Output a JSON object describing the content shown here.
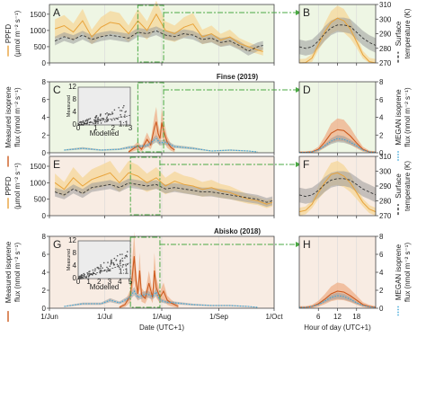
{
  "colors": {
    "finse_bg": "#eef6e4",
    "abisko_bg": "#f8ece3",
    "ppfd_line": "#e8a33a",
    "ppfd_band": "#f6d79a",
    "temp_line": "#333333",
    "temp_band": "#9a9a9a",
    "isoprene_line": "#cc5a1e",
    "isoprene_band": "#efb48f",
    "megan_line": "#3aa6d9",
    "zoom_box": "#4aa843"
  },
  "sites": {
    "top": "Finse (2019)",
    "bottom": "Abisko (2018)"
  },
  "axes": {
    "ppfd_ylabel_line1": "PPFD",
    "ppfd_ylabel_line2": "(µmol m⁻² s⁻¹)",
    "temp_ylabel_line1": "Surface",
    "temp_ylabel_line2": "temperature (K)",
    "iso_ylabel_line1": "Measured isoprene",
    "iso_ylabel_line2": "flux (nmol m⁻² s⁻¹)",
    "megan_ylabel_line1": "MEGAN isoprene",
    "megan_ylabel_line2": "flux (nmol m⁻² s⁻¹)",
    "xlabel_left": "Date (UTC+1)",
    "xlabel_right": "Hour of day (UTC+1)",
    "inset_xlabel": "Modelled",
    "inset_ylabel": "Measured",
    "inset_ref": "1:1",
    "ppfd_ticks": [
      "0",
      "500",
      "1000",
      "1500"
    ],
    "temp_ticks": [
      "270",
      "280",
      "290",
      "300",
      "310"
    ],
    "iso_ticks": [
      "0",
      "2",
      "4",
      "6",
      "8"
    ],
    "date_ticks": [
      "1/Jun",
      "1/Jul",
      "1/Aug",
      "1/Sep",
      "1/Oct"
    ],
    "hour_ticks": [
      "6",
      "12",
      "18"
    ],
    "inset_finse_yticks": [
      "0",
      "4",
      "8",
      "12"
    ],
    "inset_finse_xticks": [
      "0",
      "1",
      "2",
      "3"
    ],
    "inset_abisko_yticks": [
      "0",
      "4",
      "8",
      "12"
    ],
    "inset_abisko_xticks": [
      "0",
      "1",
      "2",
      "3",
      "4",
      "5"
    ]
  },
  "panels": [
    {
      "id": "A",
      "label": "A"
    },
    {
      "id": "B",
      "label": "B"
    },
    {
      "id": "C",
      "label": "C"
    },
    {
      "id": "D",
      "label": "D"
    },
    {
      "id": "E",
      "label": "E"
    },
    {
      "id": "F",
      "label": "F"
    },
    {
      "id": "G",
      "label": "G"
    },
    {
      "id": "H",
      "label": "H"
    }
  ],
  "chart_data": [
    {
      "type": "line",
      "panel": "A",
      "site": "Finse (2019)",
      "x_unit": "day of year",
      "xlim": [
        152,
        274
      ],
      "ylim_left": [
        0,
        1800
      ],
      "ylim_right": [
        270,
        310
      ],
      "zoom_window": [
        200,
        214
      ],
      "ppfd_x": [
        155,
        160,
        165,
        170,
        175,
        180,
        185,
        190,
        195,
        200,
        205,
        210,
        215,
        220,
        225,
        230,
        235,
        240,
        245,
        250,
        255,
        260,
        265,
        268
      ],
      "ppfd_y": [
        1050,
        1150,
        950,
        1300,
        800,
        1100,
        1250,
        1200,
        900,
        1300,
        1000,
        1500,
        1000,
        900,
        1100,
        1200,
        800,
        900,
        700,
        800,
        600,
        500,
        400,
        350
      ],
      "temp_x": [
        155,
        160,
        165,
        170,
        175,
        180,
        185,
        190,
        195,
        200,
        205,
        210,
        215,
        220,
        225,
        230,
        235,
        240,
        245,
        250,
        255,
        260,
        265,
        268
      ],
      "temp_y": [
        285,
        288,
        286,
        289,
        286,
        288,
        289,
        288,
        287,
        291,
        290,
        292,
        289,
        288,
        290,
        289,
        286,
        287,
        284,
        285,
        282,
        278,
        281,
        282
      ]
    },
    {
      "type": "line",
      "panel": "B",
      "site": "Finse (2019)",
      "xlim": [
        0,
        24
      ],
      "ylim_left": [
        0,
        1800
      ],
      "ylim_right": [
        270,
        310
      ],
      "hour": [
        0,
        2,
        4,
        6,
        8,
        10,
        12,
        14,
        16,
        18,
        20,
        22,
        24
      ],
      "ppfd_y": [
        0,
        10,
        150,
        550,
        950,
        1250,
        1380,
        1300,
        1050,
        650,
        250,
        40,
        0
      ],
      "temp_y": [
        281,
        280,
        281,
        285,
        290,
        294,
        296,
        296,
        295,
        291,
        287,
        284,
        282
      ]
    },
    {
      "type": "line",
      "panel": "C",
      "site": "Finse (2019)",
      "x_unit": "day of year",
      "xlim": [
        152,
        274
      ],
      "ylim": [
        0,
        8
      ],
      "zoom_window": [
        200,
        214
      ],
      "measured_x": [
        195,
        200,
        202,
        205,
        207,
        209,
        210,
        211,
        212,
        213,
        214,
        216,
        218,
        220
      ],
      "measured_y": [
        0.1,
        0.8,
        0.4,
        1.5,
        0.9,
        2.8,
        3.5,
        2.2,
        1.6,
        3.4,
        2.5,
        1.2,
        0.6,
        0.3
      ],
      "megan_x": [
        160,
        170,
        180,
        190,
        195,
        200,
        205,
        210,
        212,
        215,
        220,
        230,
        240,
        250,
        260,
        265
      ],
      "megan_y": [
        0.3,
        0.5,
        0.3,
        0.4,
        0.6,
        0.7,
        0.8,
        1.6,
        1.1,
        1.2,
        0.7,
        0.5,
        0.2,
        0.3,
        0.2,
        0.1
      ],
      "inset": {
        "xlim": [
          0,
          3
        ],
        "ylim": [
          0,
          12
        ]
      }
    },
    {
      "type": "line",
      "panel": "D",
      "site": "Finse (2019)",
      "xlim": [
        0,
        24
      ],
      "ylim": [
        0,
        8
      ],
      "hour": [
        0,
        2,
        4,
        6,
        8,
        10,
        12,
        14,
        16,
        18,
        20,
        22,
        24
      ],
      "measured_y": [
        0.05,
        0.05,
        0.1,
        0.4,
        1.2,
        2.2,
        2.6,
        2.5,
        1.9,
        1.1,
        0.4,
        0.1,
        0.05
      ],
      "megan_y": [
        0.05,
        0.05,
        0.1,
        0.3,
        0.8,
        1.3,
        1.6,
        1.5,
        1.2,
        0.8,
        0.3,
        0.1,
        0.05
      ]
    },
    {
      "type": "line",
      "panel": "E",
      "site": "Abisko (2018)",
      "x_unit": "day of year",
      "xlim": [
        152,
        274
      ],
      "ylim_left": [
        0,
        1800
      ],
      "ylim_right": [
        270,
        310
      ],
      "zoom_window": [
        196,
        212
      ],
      "ppfd_x": [
        155,
        160,
        165,
        170,
        175,
        180,
        185,
        190,
        195,
        200,
        205,
        210,
        215,
        220,
        225,
        230,
        235,
        240,
        245,
        250,
        255,
        260,
        265,
        270,
        273
      ],
      "ppfd_y": [
        1000,
        800,
        1150,
        900,
        1100,
        1200,
        1300,
        1000,
        1300,
        1200,
        1000,
        1150,
        900,
        1050,
        950,
        900,
        800,
        850,
        750,
        700,
        600,
        500,
        450,
        350,
        400
      ],
      "temp_x": [
        155,
        160,
        165,
        170,
        175,
        180,
        185,
        190,
        195,
        200,
        205,
        210,
        215,
        220,
        225,
        230,
        235,
        240,
        245,
        250,
        255,
        260,
        265,
        270,
        273
      ],
      "temp_y": [
        286,
        284,
        288,
        285,
        289,
        290,
        291,
        289,
        292,
        291,
        290,
        291,
        288,
        289,
        288,
        287,
        286,
        286,
        285,
        284,
        283,
        282,
        281,
        279,
        280
      ]
    },
    {
      "type": "line",
      "panel": "F",
      "site": "Abisko (2018)",
      "xlim": [
        0,
        24
      ],
      "ylim_left": [
        0,
        1800
      ],
      "ylim_right": [
        270,
        310
      ],
      "hour": [
        0,
        2,
        4,
        6,
        8,
        10,
        12,
        14,
        16,
        18,
        20,
        22,
        24
      ],
      "ppfd_y": [
        120,
        160,
        350,
        700,
        1000,
        1250,
        1300,
        1200,
        1000,
        700,
        400,
        200,
        120
      ],
      "temp_y": [
        284,
        283,
        284,
        287,
        291,
        294,
        295,
        295,
        294,
        291,
        288,
        286,
        284
      ]
    },
    {
      "type": "line",
      "panel": "G",
      "site": "Abisko (2018)",
      "x_unit": "day of year",
      "xlim": [
        152,
        274
      ],
      "ylim": [
        0,
        8
      ],
      "zoom_window": [
        196,
        212
      ],
      "measured_x": [
        190,
        193,
        196,
        198,
        199,
        200,
        201,
        202,
        204,
        206,
        208,
        209,
        210,
        212,
        214,
        216,
        218,
        220,
        222
      ],
      "measured_y": [
        0.1,
        0.4,
        1.4,
        5.8,
        3.1,
        1.6,
        4.2,
        1.5,
        1.1,
        2.8,
        1.2,
        4.2,
        2.3,
        1.2,
        1.9,
        0.9,
        0.6,
        0.4,
        0.2
      ],
      "megan_x": [
        160,
        170,
        180,
        185,
        190,
        195,
        198,
        200,
        202,
        205,
        208,
        210,
        212,
        215,
        220,
        225,
        230,
        240,
        250,
        260,
        265
      ],
      "megan_y": [
        0.2,
        0.5,
        0.5,
        0.9,
        0.6,
        1.1,
        1.9,
        1.2,
        1.4,
        1.6,
        1.3,
        1.8,
        0.9,
        0.7,
        0.6,
        0.5,
        0.4,
        0.3,
        0.3,
        0.2,
        0.1
      ],
      "inset": {
        "xlim": [
          0,
          5
        ],
        "ylim": [
          0,
          12
        ]
      }
    },
    {
      "type": "line",
      "panel": "H",
      "site": "Abisko (2018)",
      "xlim": [
        0,
        24
      ],
      "ylim": [
        0,
        8
      ],
      "hour": [
        0,
        2,
        4,
        6,
        8,
        10,
        12,
        14,
        16,
        18,
        20,
        22,
        24
      ],
      "measured_y": [
        0.1,
        0.1,
        0.2,
        0.5,
        1.0,
        1.6,
        1.9,
        1.8,
        1.4,
        0.9,
        0.4,
        0.2,
        0.1
      ],
      "megan_y": [
        0.1,
        0.1,
        0.2,
        0.4,
        0.8,
        1.2,
        1.4,
        1.3,
        1.0,
        0.6,
        0.3,
        0.15,
        0.1
      ]
    }
  ]
}
